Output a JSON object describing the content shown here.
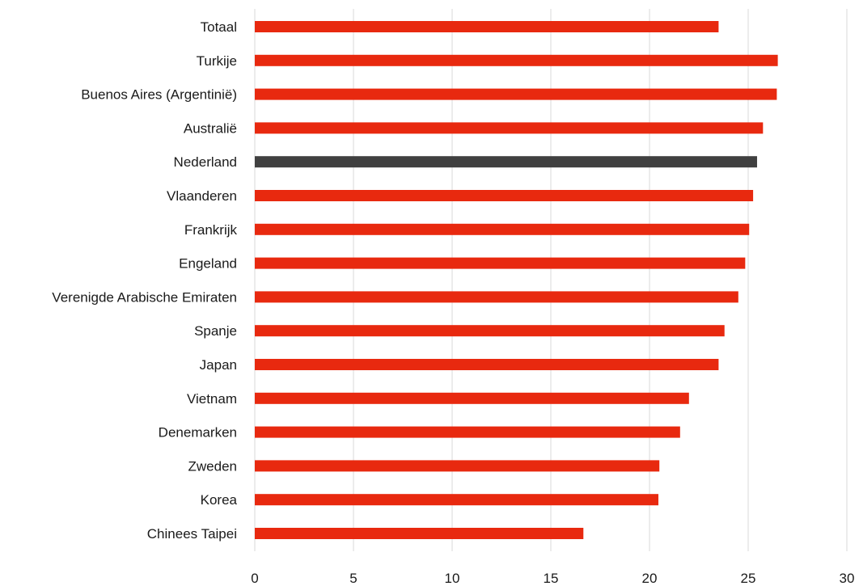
{
  "chart_data": {
    "type": "bar",
    "orientation": "horizontal",
    "title": "",
    "xlabel": "",
    "ylabel": "",
    "categories": [
      "Totaal",
      "Turkije",
      "Buenos Aires (Argentinië)",
      "Australië",
      "Nederland",
      "Vlaanderen",
      "Frankrijk",
      "Engeland",
      "Verenigde Arabische Emiraten",
      "Spanje",
      "Japan",
      "Vietnam",
      "Denemarken",
      "Zweden",
      "Korea",
      "Chinees Taipei"
    ],
    "values": [
      23.5,
      26.5,
      26.45,
      25.75,
      25.45,
      25.25,
      25.05,
      24.85,
      24.5,
      23.8,
      23.5,
      22.0,
      21.55,
      20.5,
      20.45,
      16.65
    ],
    "highlight_category": "Nederland",
    "colors": {
      "bar": "#e8290f",
      "highlight": "#404040",
      "grid": "#d9d9d9",
      "text": "#1a1a1a"
    },
    "xlim": [
      0,
      30
    ],
    "xticks": [
      0,
      5,
      10,
      15,
      20,
      25,
      30
    ],
    "grid": true,
    "legend": "none"
  }
}
